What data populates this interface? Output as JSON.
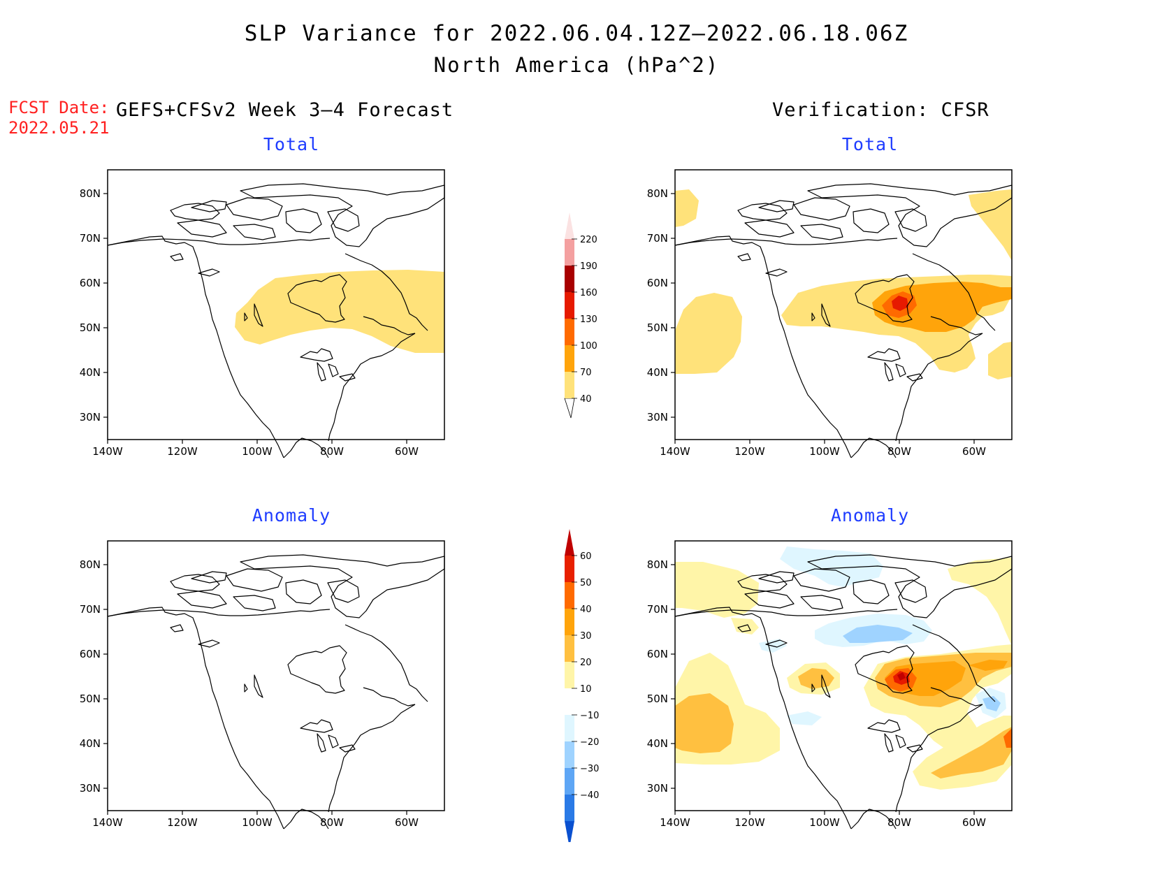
{
  "header": {
    "title": "SLP Variance for 2022.06.04.12Z–2022.06.18.06Z",
    "subtitle": "North America (hPa^2)"
  },
  "forecast_date": {
    "label": "FCST Date:",
    "value": "2022.05.21"
  },
  "columns": {
    "model_title": "GEFS+CFSv2 Week 3–4 Forecast",
    "verification_title": "Verification: CFSR"
  },
  "panels": {
    "forecast_total": "Total",
    "verification_total": "Total",
    "forecast_anomaly": "Anomaly",
    "verification_anomaly": "Anomaly"
  },
  "map_axes": {
    "lat_labels": [
      "80N",
      "70N",
      "60N",
      "50N",
      "40N",
      "30N"
    ],
    "lon_labels": [
      "140W",
      "120W",
      "100W",
      "80W",
      "60W"
    ]
  },
  "total_colorbar": {
    "levels": [
      "40",
      "70",
      "100",
      "130",
      "160",
      "190",
      "220"
    ],
    "colors": [
      "#ffe27a",
      "#ffa40b",
      "#ff6a00",
      "#e61a00",
      "#a80000",
      "#f4a0a0",
      "#fbe2e2"
    ]
  },
  "anomaly_colorbar": {
    "levels": [
      "60",
      "50",
      "40",
      "30",
      "20",
      "10",
      "−10",
      "−20",
      "−30",
      "−40"
    ],
    "colors_top_to_bottom": [
      "#c00000",
      "#e82000",
      "#ff6a00",
      "#ffa40b",
      "#ffc040",
      "#fff5a8",
      "#ffffff",
      "#dff6ff",
      "#9fd3ff",
      "#5ea6f5",
      "#2a7ae6",
      "#0a50d0"
    ]
  }
}
